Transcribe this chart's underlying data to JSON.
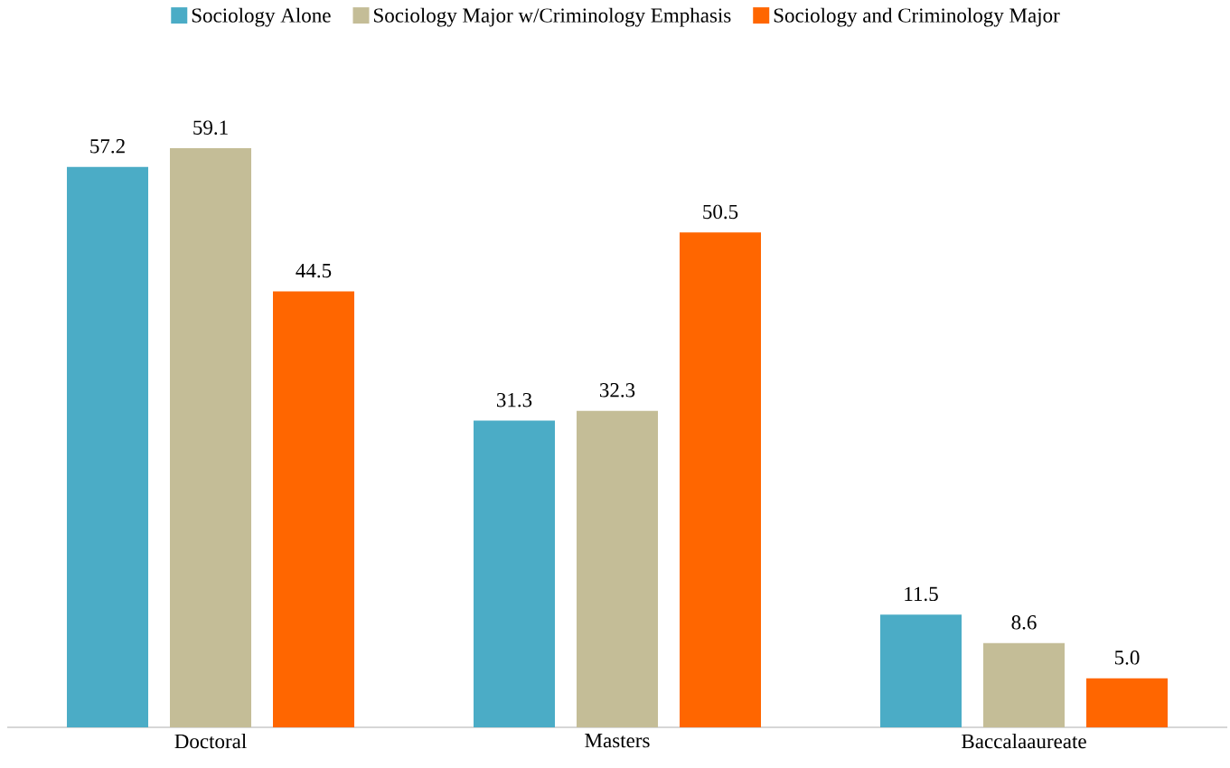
{
  "chart_data": {
    "type": "bar",
    "categories": [
      "Doctoral",
      "Masters",
      "Baccalaaureate"
    ],
    "series": [
      {
        "name": "Sociology Alone",
        "color": "#4bacc6",
        "values": [
          57.2,
          31.3,
          11.5
        ],
        "value_labels": [
          "57.2",
          "31.3",
          "11.5"
        ]
      },
      {
        "name": "Sociology Major w/Criminology Emphasis",
        "color": "#c4bd97",
        "values": [
          59.1,
          32.3,
          8.6
        ],
        "value_labels": [
          "59.1",
          "32.3",
          "8.6"
        ]
      },
      {
        "name": "Sociology and Criminology Major",
        "color": "#ff6600",
        "values": [
          44.5,
          50.5,
          5
        ],
        "value_labels": [
          "44.5",
          "50.5",
          "5.0"
        ]
      }
    ],
    "legend": "top"
  }
}
